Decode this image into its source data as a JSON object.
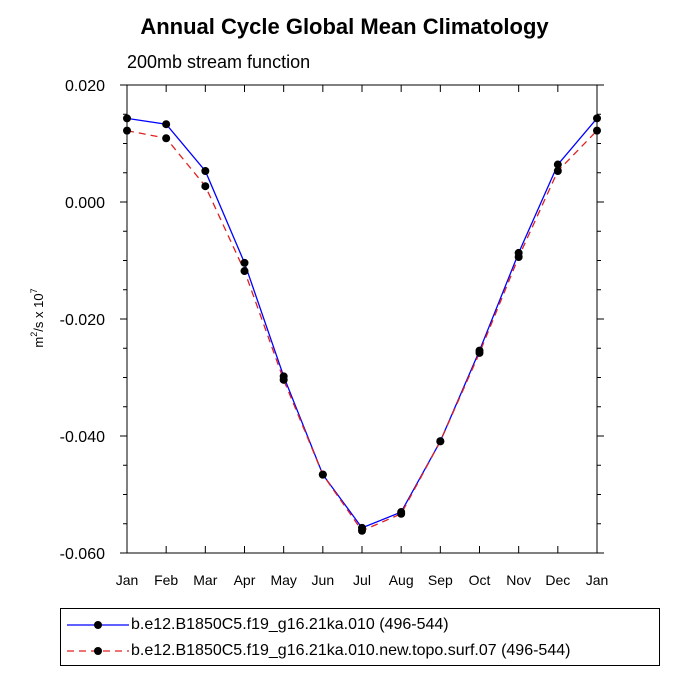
{
  "chart_data": {
    "type": "line",
    "title": "Annual Cycle Global Mean Climatology",
    "subtitle": "200mb stream function",
    "ylabel": "m2/s x 107",
    "ylabel_parts": {
      "base": "m",
      "exp1": "2",
      "mid": "/s x 10",
      "exp2": "7"
    },
    "xlabel": "",
    "categories": [
      "Jan",
      "Feb",
      "Mar",
      "Apr",
      "May",
      "Jun",
      "Jul",
      "Aug",
      "Sep",
      "Oct",
      "Nov",
      "Dec",
      "Jan"
    ],
    "ylim": [
      -0.06,
      0.02
    ],
    "yticks": [
      0.02,
      0.0,
      -0.02,
      -0.04,
      -0.06
    ],
    "ytick_labels": [
      "0.020",
      "0.000",
      "-0.020",
      "-0.040",
      "-0.060"
    ],
    "series": [
      {
        "name": "b.e12.B1850C5.f19_g16.21ka.010 (496-544)",
        "color": "#0000ff",
        "dash": "solid",
        "values": [
          0.0143,
          0.0133,
          0.0053,
          -0.0104,
          -0.0298,
          -0.0466,
          -0.0557,
          -0.053,
          -0.0409,
          -0.0254,
          -0.0087,
          0.0064,
          0.0143
        ]
      },
      {
        "name": "b.e12.B1850C5.f19_g16.21ka.010.new.topo.surf.07 (496-544)",
        "color": "#e02020",
        "dash": "dashed",
        "values": [
          0.0122,
          0.0109,
          0.0027,
          -0.0118,
          -0.0304,
          -0.0466,
          -0.0562,
          -0.0533,
          -0.0409,
          -0.0258,
          -0.0094,
          0.0053,
          0.0122
        ]
      }
    ],
    "grid": false,
    "legend_position": "bottom"
  }
}
